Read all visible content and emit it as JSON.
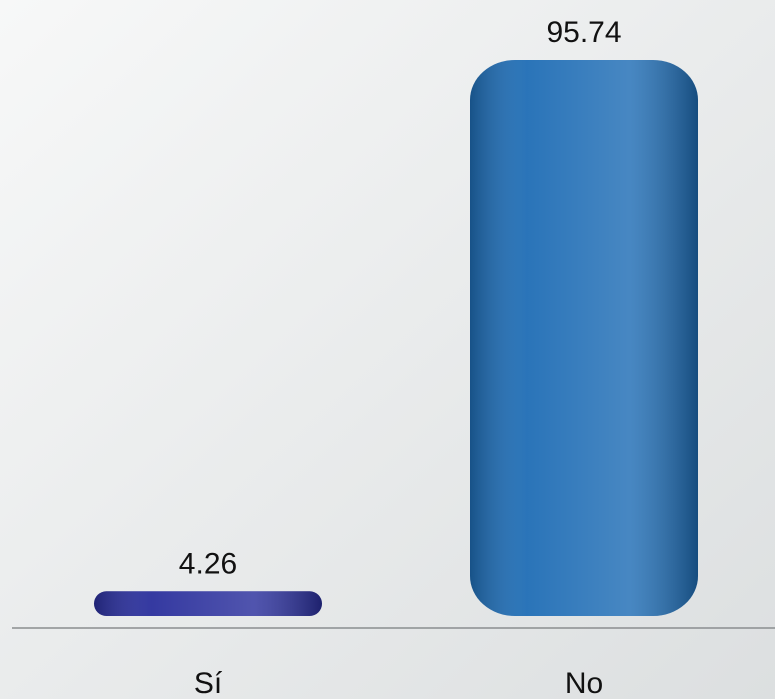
{
  "chart_data": {
    "type": "bar",
    "categories": [
      "Sí",
      "No"
    ],
    "values": [
      4.26,
      95.74
    ],
    "colors": [
      "#2a2f9c",
      "#1f6db5"
    ]
  }
}
